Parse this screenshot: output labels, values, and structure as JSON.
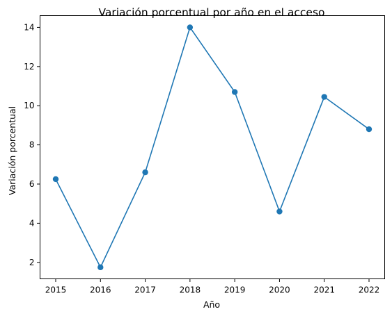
{
  "chart_data": {
    "type": "line",
    "title": "Variación porcentual por año en el acceso",
    "xlabel": "Año",
    "ylabel": "Variación porcentual",
    "x": [
      2015,
      2016,
      2017,
      2018,
      2019,
      2020,
      2021,
      2022
    ],
    "series": [
      {
        "name": "Variación porcentual",
        "values": [
          6.25,
          1.75,
          6.6,
          14.0,
          10.7,
          4.6,
          10.45,
          8.8
        ],
        "color": "#1f77b4",
        "marker": "circle"
      }
    ],
    "xticks": [
      "2015",
      "2016",
      "2017",
      "2018",
      "2019",
      "2020",
      "2021",
      "2022"
    ],
    "yticks": [
      "2",
      "4",
      "6",
      "8",
      "10",
      "12",
      "14"
    ],
    "ytick_values": [
      2,
      4,
      6,
      8,
      10,
      12,
      14
    ],
    "xlim": [
      2014.65,
      2022.35
    ],
    "ylim": [
      1.16,
      14.6
    ],
    "grid": false,
    "legend": "none"
  }
}
